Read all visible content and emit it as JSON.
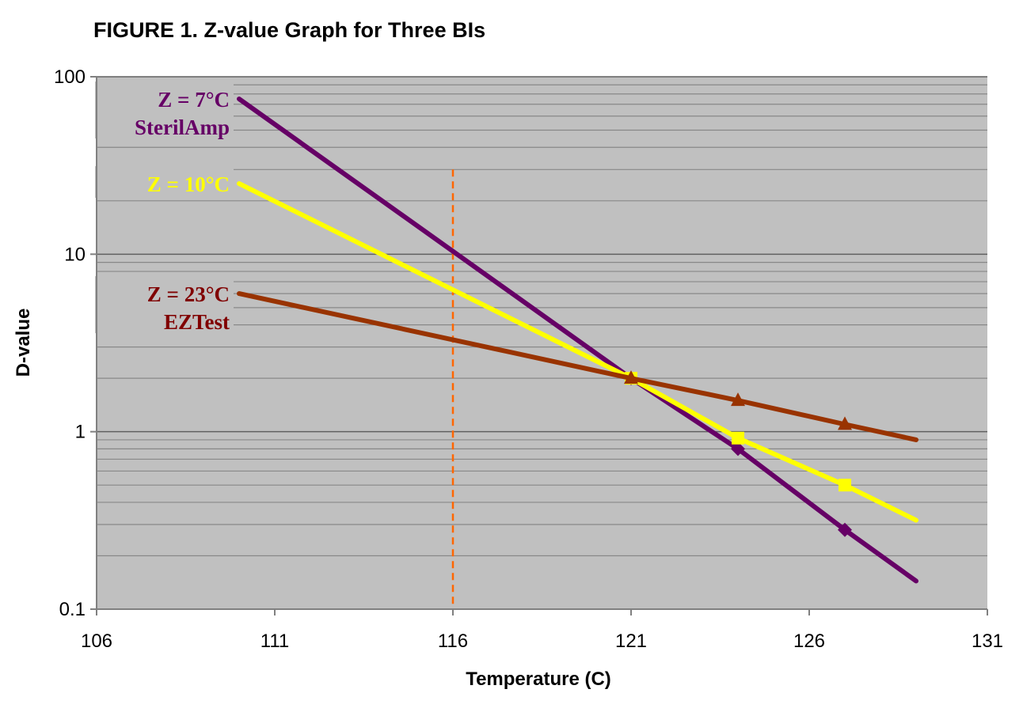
{
  "chart_data": {
    "type": "line",
    "title": "FIGURE 1.  Z-value Graph for Three BIs",
    "xlabel": "Temperature (C)",
    "ylabel": "D-value",
    "xlim": [
      106,
      131
    ],
    "ylim": [
      0.1,
      100
    ],
    "yscale": "log",
    "xticks": [
      "106",
      "111",
      "116",
      "121",
      "126",
      "131"
    ],
    "yticks": [
      "0.1",
      "1",
      "10",
      "100"
    ],
    "grid": true,
    "reference_line": {
      "x": 116,
      "y_range": [
        0.1,
        30
      ],
      "color": "#ff6600",
      "style": "dashed"
    },
    "series": [
      {
        "name": "SterilAmp",
        "z_label": "Z = 7°C",
        "label2": "SterilAmp",
        "color": "#660066",
        "marker": "diamond",
        "x": [
          110,
          121,
          124,
          127,
          129
        ],
        "y": [
          75,
          2,
          0.8,
          0.28,
          0.144
        ],
        "marked": [
          false,
          true,
          true,
          true,
          false
        ]
      },
      {
        "name": "Z = 10°C",
        "z_label": "Z = 10°C",
        "label2": "",
        "color": "#ffff00",
        "marker": "square",
        "x": [
          110,
          121,
          124,
          127,
          129
        ],
        "y": [
          25,
          2,
          0.92,
          0.5,
          0.317
        ],
        "marked": [
          false,
          true,
          true,
          true,
          false
        ]
      },
      {
        "name": "EZTest",
        "z_label": "Z = 23°C",
        "label2": "EZTest",
        "color": "#993300",
        "marker": "triangle",
        "x": [
          110,
          121,
          124,
          127,
          129
        ],
        "y": [
          6,
          2,
          1.5,
          1.1,
          0.9
        ],
        "marked": [
          false,
          true,
          true,
          true,
          false
        ]
      }
    ]
  }
}
